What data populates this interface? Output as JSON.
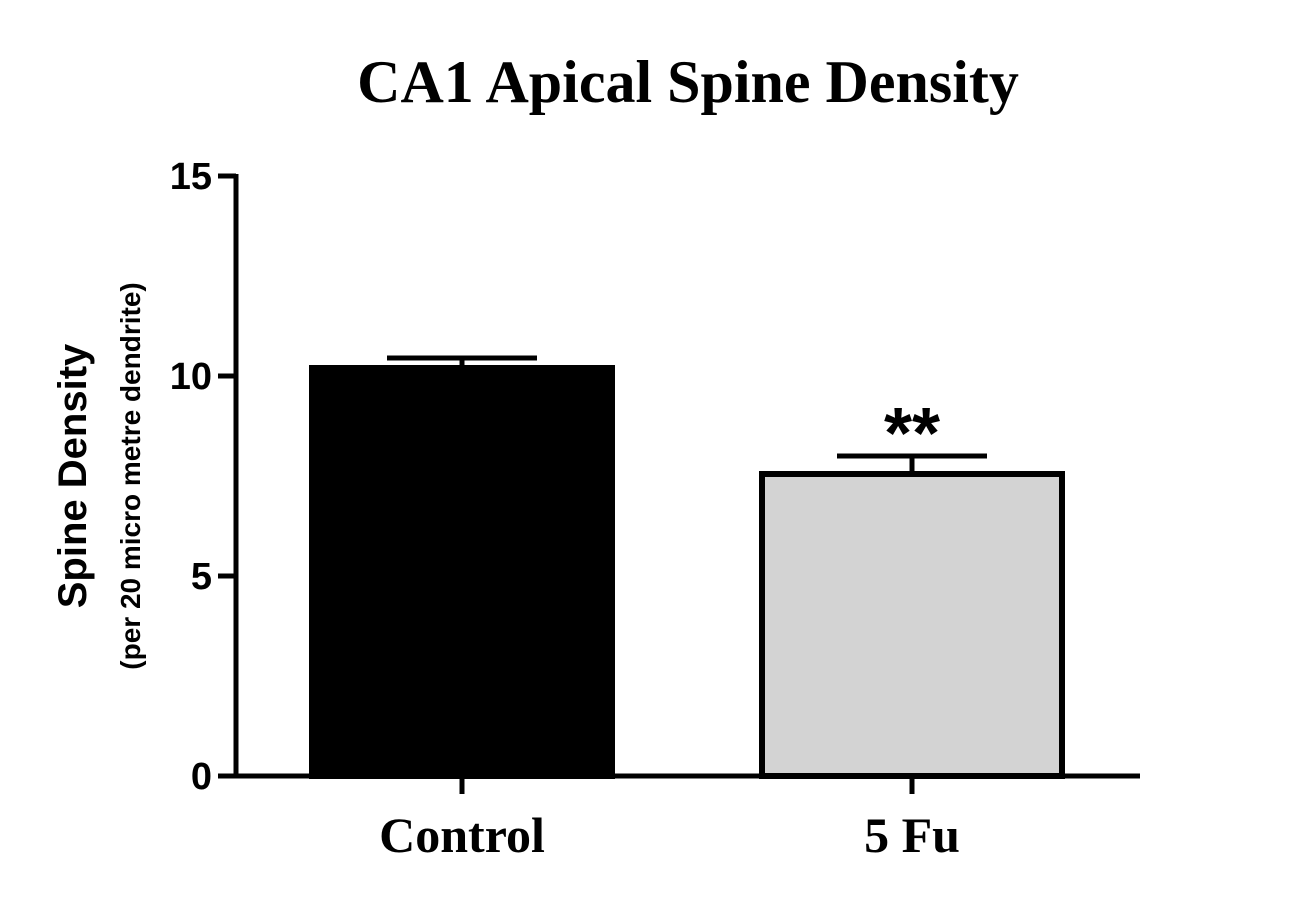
{
  "chart_data": {
    "type": "bar",
    "title": "CA1 Apical Spine Density",
    "ylabel": "Spine Density",
    "ylabel_sub": "(per 20 micro metre dendrite)",
    "xlabel": "",
    "categories": [
      "Control",
      "5 Fu"
    ],
    "values": [
      10.2,
      7.55
    ],
    "error_bars": [
      0.25,
      0.45
    ],
    "bar_colors": [
      "#000000",
      "#d3d3d3"
    ],
    "annotations": [
      "",
      "**"
    ],
    "ylim": [
      0,
      15
    ],
    "yticks": [
      0,
      5,
      10,
      15
    ],
    "grid": false,
    "legend": "none"
  }
}
